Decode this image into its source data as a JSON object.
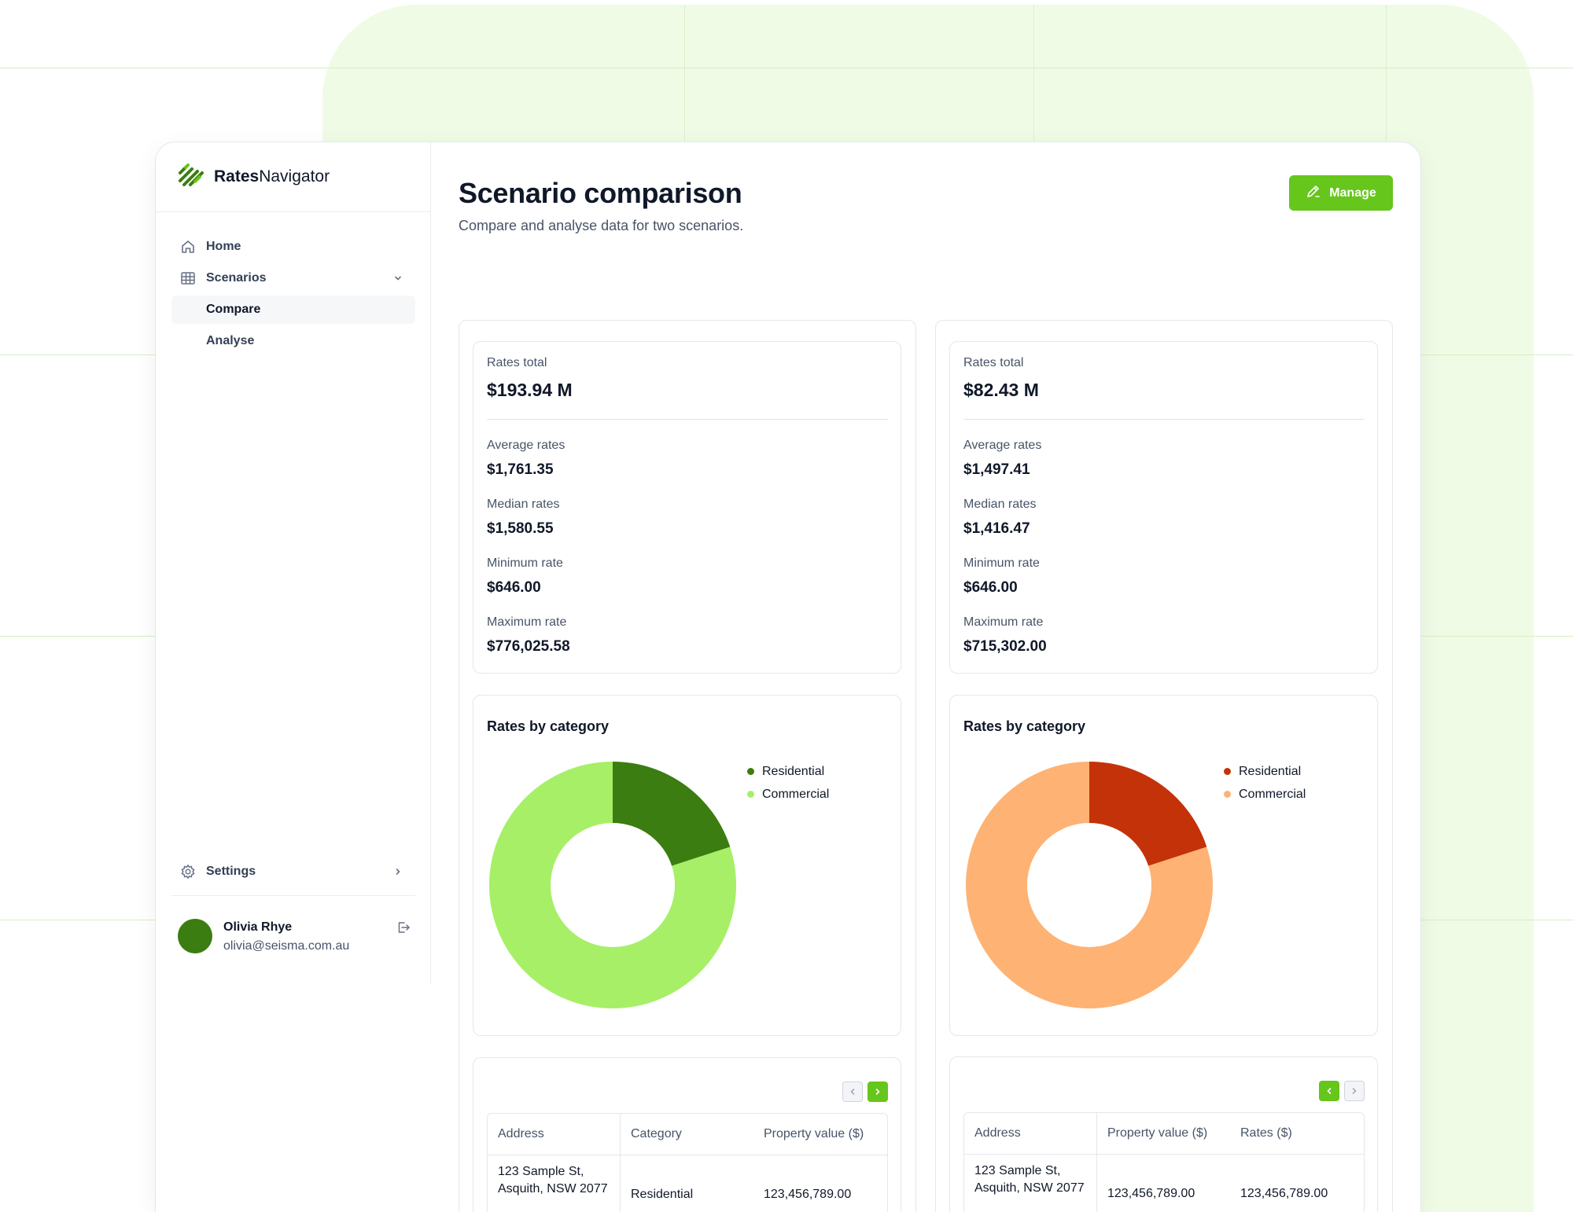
{
  "app": {
    "name_bold": "Rates",
    "name_rest": "Navigator"
  },
  "sidebar": {
    "home": "Home",
    "scenarios": "Scenarios",
    "compare": "Compare",
    "analyse": "Analyse",
    "settings": "Settings"
  },
  "user": {
    "name": "Olivia Rhye",
    "email": "olivia@seisma.com.au"
  },
  "header": {
    "title": "Scenario comparison",
    "subtitle": "Compare and analyse data for two scenarios.",
    "manage_label": "Manage"
  },
  "scenarios": [
    {
      "rates_total_label": "Rates total",
      "rates_total": "$193.94 M",
      "stats": [
        {
          "label": "Average rates",
          "value": "$1,761.35"
        },
        {
          "label": "Median rates",
          "value": "$1,580.55"
        },
        {
          "label": "Minimum rate",
          "value": "$646.00"
        },
        {
          "label": "Maximum rate",
          "value": "$776,025.58"
        }
      ],
      "chart_title": "Rates by category",
      "table": {
        "headers": [
          "Address",
          "Category",
          "Property value ($)"
        ],
        "rows": [
          [
            "123 Sample St, Asquith, NSW 2077",
            "Residential",
            "123,456,789.00"
          ]
        ]
      }
    },
    {
      "rates_total_label": "Rates total",
      "rates_total": "$82.43 M",
      "stats": [
        {
          "label": "Average rates",
          "value": "$1,497.41"
        },
        {
          "label": "Median rates",
          "value": "$1,416.47"
        },
        {
          "label": "Minimum rate",
          "value": "$646.00"
        },
        {
          "label": "Maximum rate",
          "value": "$715,302.00"
        }
      ],
      "chart_title": "Rates by category",
      "table": {
        "headers": [
          "Address",
          "Property value ($)",
          "Rates ($)"
        ],
        "rows": [
          [
            "123 Sample St, Asquith, NSW 2077",
            "123,456,789.00",
            "123,456,789.00"
          ]
        ]
      }
    }
  ],
  "chart_data": [
    {
      "type": "pie",
      "title": "Rates by category",
      "categories": [
        "Residential",
        "Commercial"
      ],
      "values": [
        20,
        80
      ],
      "colors": [
        "#3b7d10",
        "#a6ef67"
      ],
      "legend": "right"
    },
    {
      "type": "pie",
      "title": "Rates by category",
      "categories": [
        "Residential",
        "Commercial"
      ],
      "values": [
        20,
        80
      ],
      "colors": [
        "#c4320a",
        "#feb273"
      ],
      "legend": "right"
    }
  ],
  "colors": {
    "accent": "#66c61c",
    "brand_dark": "#3b7d10"
  },
  "icons": {
    "logo": "stripes-logo-icon",
    "home": "home-icon",
    "scenarios": "table-grid-icon",
    "settings": "gear-icon",
    "logout": "logout-icon",
    "manage": "edit-pencil-icon"
  }
}
